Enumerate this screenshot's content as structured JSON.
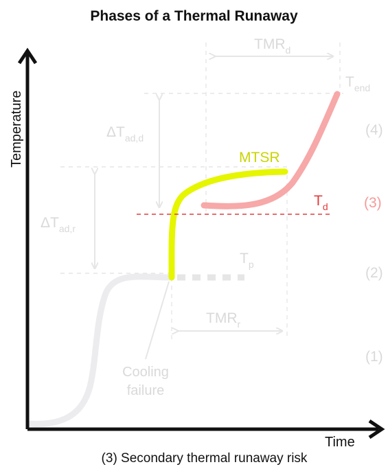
{
  "title": "Phases of a Thermal Runaway",
  "caption": "(3) Secondary thermal runaway risk",
  "axes": {
    "y_label": "Temperature",
    "x_label": "Time"
  },
  "labels": {
    "tmr_d": {
      "main": "TMR",
      "sub": "d"
    },
    "t_end": {
      "main": "T",
      "sub": "end"
    },
    "delta_t_ad_d": {
      "main": "ΔT",
      "sub": "ad,d"
    },
    "mtsr": "MTSR",
    "t_d": {
      "main": "T",
      "sub": "d"
    },
    "delta_t_ad_r": {
      "main": "ΔT",
      "sub": "ad,r"
    },
    "t_p": {
      "main": "T",
      "sub": "p"
    },
    "tmr_r": {
      "main": "TMR",
      "sub": "r"
    },
    "cooling_failure": [
      "Cooling",
      "failure"
    ]
  },
  "phases": [
    "(1)",
    "(2)",
    "(3)",
    "(4)"
  ],
  "active_phase": "(3)",
  "colors": {
    "axis": "#111111",
    "faded": "#e6e6e6",
    "faded_text": "#d9d9d9",
    "initial_curve": "#ecebee",
    "mtsr_curve": "#e6f500",
    "mtsr_text": "#c9d400",
    "runaway_curve": "#f7a8a8",
    "td_line": "#e33b3b",
    "active_phase": "#f59a9a"
  }
}
